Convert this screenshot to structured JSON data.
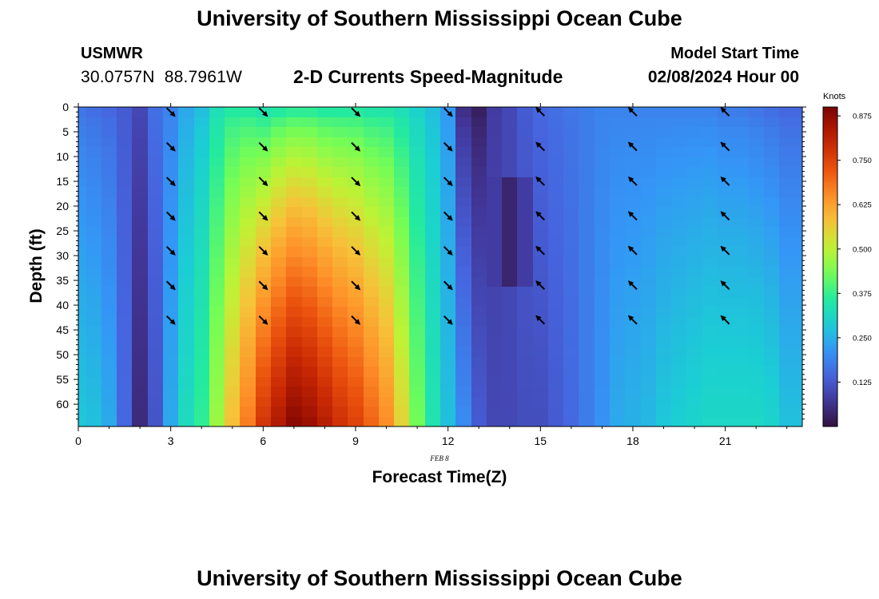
{
  "header": {
    "title": "University of Southern Mississippi Ocean Cube",
    "station": "USMWR",
    "latitude": "30.0757N",
    "longitude": "88.7961W",
    "subtitle": "2-D Currents Speed-Magnitude",
    "model_start_label": "Model Start Time",
    "model_start_value": "02/08/2024 Hour 00"
  },
  "footer": {
    "title": "University of Southern Mississippi Ocean Cube"
  },
  "chart_data": {
    "type": "heatmap",
    "title": "2-D Currents Speed-Magnitude",
    "xlabel": "Forecast Time(Z)",
    "ylabel": "Depth (ft)",
    "date_label": "FEB 8",
    "xlim": [
      0,
      23.5
    ],
    "ylim": [
      0,
      64.5
    ],
    "x_ticks": [
      0,
      3,
      6,
      9,
      12,
      15,
      18,
      21
    ],
    "y_ticks": [
      0,
      5,
      10,
      15,
      20,
      25,
      30,
      35,
      40,
      45,
      50,
      55,
      60
    ],
    "colorbar": {
      "label": "Knots",
      "range": [
        0.0,
        0.9
      ],
      "ticks": [
        "0.875",
        "0.750",
        "0.625",
        "0.500",
        "0.375",
        "0.250",
        "0.125"
      ]
    },
    "speed_profile": [
      {
        "hour": 0,
        "top": 0.17,
        "bottom": 0.28
      },
      {
        "hour": 0.5,
        "top": 0.16,
        "bottom": 0.27
      },
      {
        "hour": 1,
        "top": 0.15,
        "bottom": 0.24
      },
      {
        "hour": 1.5,
        "top": 0.13,
        "bottom": 0.15
      },
      {
        "hour": 2,
        "top": 0.1,
        "bottom": 0.05
      },
      {
        "hour": 2.5,
        "top": 0.16,
        "bottom": 0.12
      },
      {
        "hour": 3,
        "top": 0.19,
        "bottom": 0.24
      },
      {
        "hour": 3.5,
        "top": 0.24,
        "bottom": 0.32
      },
      {
        "hour": 4,
        "top": 0.27,
        "bottom": 0.37
      },
      {
        "hour": 4.5,
        "top": 0.33,
        "bottom": 0.47
      },
      {
        "hour": 5,
        "top": 0.36,
        "bottom": 0.58
      },
      {
        "hour": 5.5,
        "top": 0.36,
        "bottom": 0.67
      },
      {
        "hour": 6,
        "top": 0.34,
        "bottom": 0.77
      },
      {
        "hour": 6.5,
        "top": 0.36,
        "bottom": 0.83
      },
      {
        "hour": 7,
        "top": 0.37,
        "bottom": 0.88
      },
      {
        "hour": 7.5,
        "top": 0.37,
        "bottom": 0.86
      },
      {
        "hour": 8,
        "top": 0.36,
        "bottom": 0.82
      },
      {
        "hour": 8.5,
        "top": 0.36,
        "bottom": 0.78
      },
      {
        "hour": 9,
        "top": 0.36,
        "bottom": 0.75
      },
      {
        "hour": 9.5,
        "top": 0.35,
        "bottom": 0.7
      },
      {
        "hour": 10,
        "top": 0.35,
        "bottom": 0.65
      },
      {
        "hour": 10.5,
        "top": 0.33,
        "bottom": 0.55
      },
      {
        "hour": 11,
        "top": 0.3,
        "bottom": 0.43
      },
      {
        "hour": 11.5,
        "top": 0.27,
        "bottom": 0.34
      },
      {
        "hour": 12,
        "top": 0.22,
        "bottom": 0.27
      },
      {
        "hour": 12.5,
        "top": 0.06,
        "bottom": 0.2
      },
      {
        "hour": 13,
        "top": 0.03,
        "bottom": 0.13
      },
      {
        "hour": 13.5,
        "top": 0.08,
        "bottom": 0.1
      },
      {
        "hour": 14,
        "top": 0.1,
        "bottom": 0.1
      },
      {
        "hour": 14.5,
        "top": 0.13,
        "bottom": 0.11
      },
      {
        "hour": 15,
        "top": 0.15,
        "bottom": 0.11
      },
      {
        "hour": 15.5,
        "top": 0.16,
        "bottom": 0.13
      },
      {
        "hour": 16,
        "top": 0.17,
        "bottom": 0.15
      },
      {
        "hour": 16.5,
        "top": 0.18,
        "bottom": 0.18
      },
      {
        "hour": 17,
        "top": 0.19,
        "bottom": 0.21
      },
      {
        "hour": 17.5,
        "top": 0.19,
        "bottom": 0.24
      },
      {
        "hour": 18,
        "top": 0.19,
        "bottom": 0.25
      },
      {
        "hour": 18.5,
        "top": 0.19,
        "bottom": 0.26
      },
      {
        "hour": 19,
        "top": 0.19,
        "bottom": 0.28
      },
      {
        "hour": 19.5,
        "top": 0.19,
        "bottom": 0.29
      },
      {
        "hour": 20,
        "top": 0.19,
        "bottom": 0.3
      },
      {
        "hour": 20.5,
        "top": 0.19,
        "bottom": 0.31
      },
      {
        "hour": 21,
        "top": 0.18,
        "bottom": 0.31
      },
      {
        "hour": 21.5,
        "top": 0.18,
        "bottom": 0.31
      },
      {
        "hour": 22,
        "top": 0.17,
        "bottom": 0.31
      },
      {
        "hour": 22.5,
        "top": 0.16,
        "bottom": 0.3
      },
      {
        "hour": 23,
        "top": 0.15,
        "bottom": 0.27
      }
    ],
    "vectors": {
      "hours": [
        3,
        6,
        9,
        12,
        15,
        18,
        21
      ],
      "depths_ft": [
        1,
        8,
        15,
        22,
        29,
        36,
        43
      ],
      "direction": [
        "SE",
        "SE",
        "SE",
        "SE",
        "NW",
        "NW",
        "NW"
      ]
    }
  }
}
